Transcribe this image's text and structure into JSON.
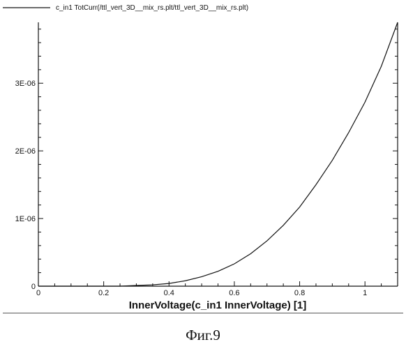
{
  "chart_data": {
    "type": "line",
    "legend": {
      "position": "top-left"
    },
    "series": [
      {
        "name": "c_in1 TotCurr(/ttl_vert_3D__mix_rs.plt/ttl_vert_3D__mix_rs.plt)",
        "x": [
          0,
          0.05,
          0.1,
          0.15,
          0.2,
          0.25,
          0.3,
          0.35,
          0.4,
          0.45,
          0.5,
          0.55,
          0.6,
          0.65,
          0.7,
          0.75,
          0.8,
          0.85,
          0.9,
          0.95,
          1.0,
          1.05,
          1.1
        ],
        "y": [
          0,
          0,
          0,
          0,
          0,
          0,
          1e-08,
          2e-08,
          4e-08,
          8e-08,
          1.4e-07,
          2.2e-07,
          3.3e-07,
          4.8e-07,
          6.7e-07,
          9e-07,
          1.17e-06,
          1.5e-06,
          1.86e-06,
          2.27e-06,
          2.72e-06,
          3.25e-06,
          3.9e-06
        ]
      }
    ],
    "xlabel": "InnerVoltage(c_in1 InnerVoltage) [1]",
    "ylabel": "",
    "xlim": [
      0,
      1.1
    ],
    "ylim": [
      0,
      3.9e-06
    ],
    "xticks": [
      {
        "value": 0,
        "label": "0"
      },
      {
        "value": 0.2,
        "label": "0.2"
      },
      {
        "value": 0.4,
        "label": "0.4"
      },
      {
        "value": 0.6,
        "label": "0.6"
      },
      {
        "value": 0.8,
        "label": "0.8"
      },
      {
        "value": 1,
        "label": "1"
      }
    ],
    "yticks": [
      {
        "value": 0,
        "label": "0"
      },
      {
        "value": 1e-06,
        "label": "1E-06"
      },
      {
        "value": 2e-06,
        "label": "2E-06"
      },
      {
        "value": 3e-06,
        "label": "3E-06"
      }
    ],
    "grid": false
  },
  "caption": "Фиг.9"
}
